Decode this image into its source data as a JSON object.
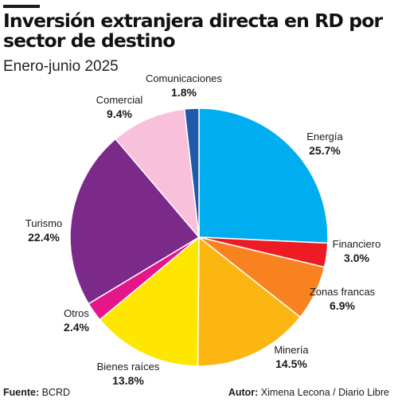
{
  "title": "Inversión extranjera directa en RD por sector de destino",
  "subtitle": "Enero-junio 2025",
  "footer": {
    "source_label": "Fuente:",
    "source_value": "BCRD",
    "author_label": "Autor:",
    "author_value": "Ximena Lecona / Diario Libre"
  },
  "chart_data": {
    "type": "pie",
    "title": "Inversión extranjera directa en RD por sector de destino",
    "subtitle": "Enero-junio 2025",
    "unit": "%",
    "slices": [
      {
        "label": "Energía",
        "value": 25.7,
        "display": "25.7%",
        "color": "#00aeef"
      },
      {
        "label": "Financiero",
        "value": 3.0,
        "display": "3.0%",
        "color": "#ed1c24"
      },
      {
        "label": "Zonas francas",
        "value": 6.9,
        "display": "6.9%",
        "color": "#f7821f"
      },
      {
        "label": "Minería",
        "value": 14.5,
        "display": "14.5%",
        "color": "#fbb612"
      },
      {
        "label": "Bienes raíces",
        "value": 13.8,
        "display": "13.8%",
        "color": "#ffe600"
      },
      {
        "label": "Otros",
        "value": 2.4,
        "display": "2.4%",
        "color": "#e5168a"
      },
      {
        "label": "Turismo",
        "value": 22.4,
        "display": "22.4%",
        "color": "#7b2a8a"
      },
      {
        "label": "Comercial",
        "value": 9.4,
        "display": "9.4%",
        "color": "#f9c0db"
      },
      {
        "label": "Comunicaciones",
        "value": 1.8,
        "display": "1.8%",
        "color": "#1e5aa8"
      }
    ]
  }
}
